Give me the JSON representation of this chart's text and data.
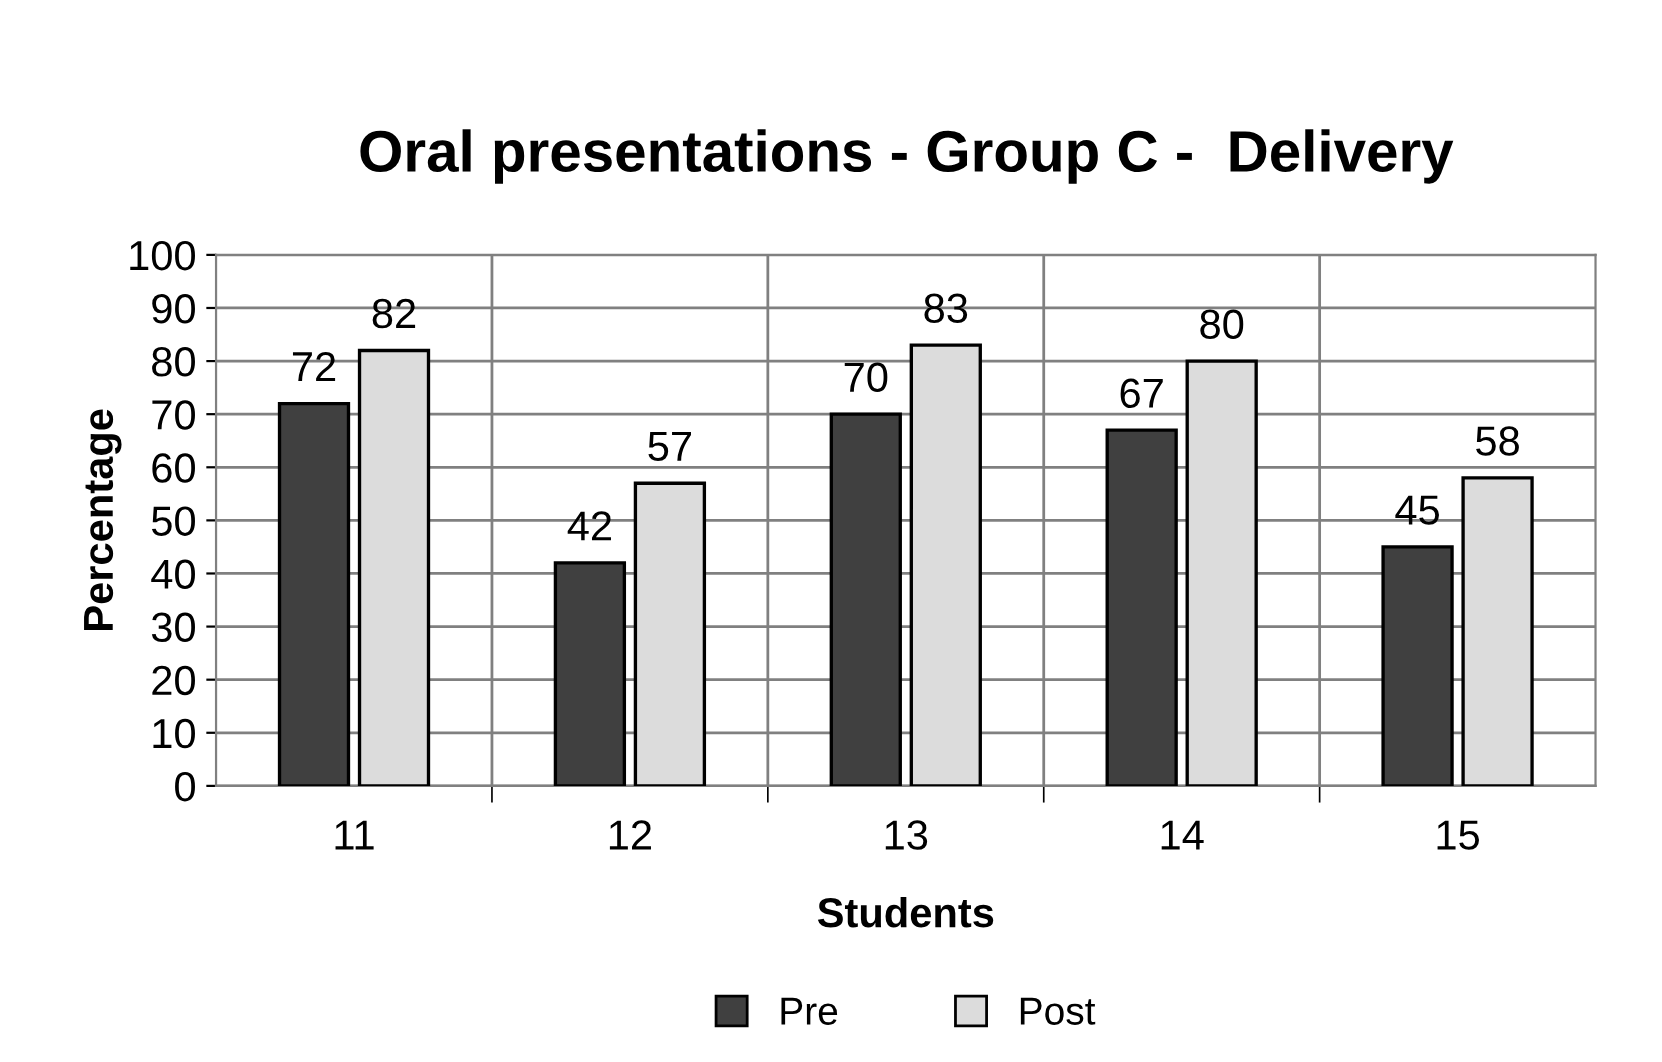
{
  "chart_data": {
    "type": "bar",
    "title": "Oral presentations - Group C -  Delivery",
    "xlabel": "Students",
    "ylabel": "Percentage",
    "categories": [
      "11",
      "12",
      "13",
      "14",
      "15"
    ],
    "series": [
      {
        "name": "Pre",
        "color": "#404040",
        "values": [
          72,
          42,
          70,
          67,
          45
        ]
      },
      {
        "name": "Post",
        "color": "#dcdcdc",
        "values": [
          82,
          57,
          83,
          80,
          58
        ]
      }
    ],
    "ylim": [
      0,
      100
    ],
    "yticks": [
      0,
      10,
      20,
      30,
      40,
      50,
      60,
      70,
      80,
      90,
      100
    ],
    "grid": true,
    "legend": "bottom",
    "data_labels": true
  }
}
